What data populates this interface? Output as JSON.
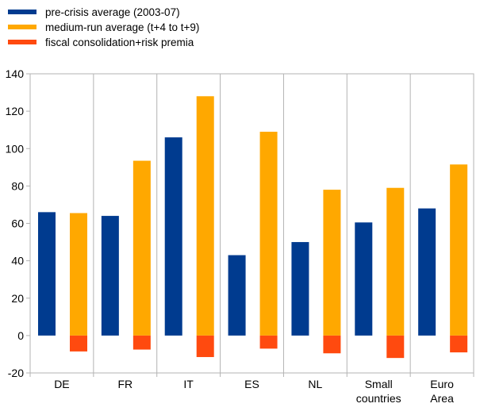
{
  "chart_data": {
    "type": "bar",
    "title": "",
    "xlabel": "",
    "ylabel": "",
    "ylim": [
      -20,
      140
    ],
    "y_ticks": [
      -20,
      0,
      20,
      40,
      60,
      80,
      100,
      120,
      140
    ],
    "grid": "vertical lines between categories",
    "legend": {
      "placement": "top-left"
    },
    "categories": [
      "DE",
      "FR",
      "IT",
      "ES",
      "NL",
      "Small countries",
      "Euro Area"
    ],
    "category_labels": [
      [
        "DE"
      ],
      [
        "FR"
      ],
      [
        "IT"
      ],
      [
        "ES"
      ],
      [
        "NL"
      ],
      [
        "Small",
        "countries"
      ],
      [
        "Euro",
        "Area"
      ]
    ],
    "series": [
      {
        "name": "pre-crisis average (2003-07)",
        "color": "#003b8f",
        "slot": 0,
        "values": [
          66,
          64,
          106,
          43,
          50,
          60.5,
          68
        ]
      },
      {
        "name": "medium-run average (t+4 to t+9)",
        "color": "#ffa800",
        "slot": 1,
        "values": [
          65.5,
          93.5,
          128,
          109,
          78,
          79,
          91.5
        ]
      },
      {
        "name": "fiscal consolidation+risk premia",
        "color": "#ff4a0f",
        "slot": 1,
        "values": [
          -8.5,
          -7.5,
          -11.5,
          -7,
          -9.5,
          -12,
          -9
        ]
      }
    ]
  }
}
